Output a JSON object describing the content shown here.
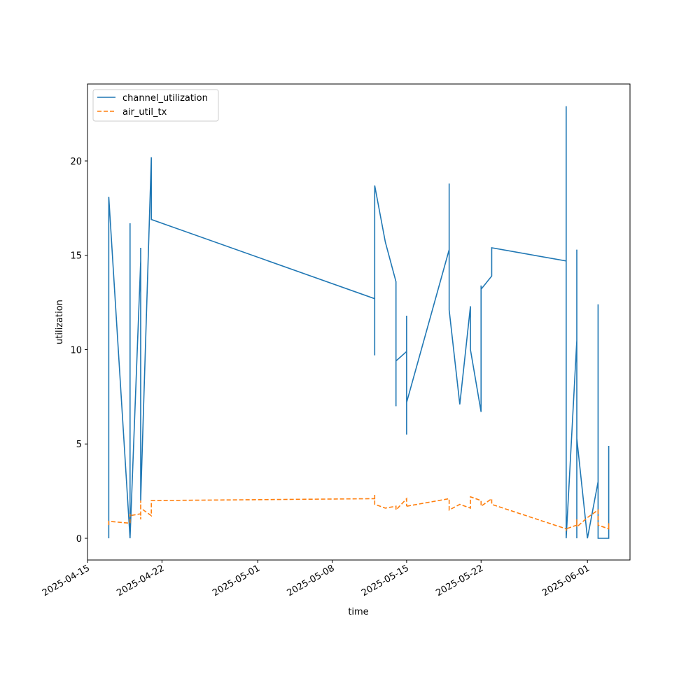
{
  "chart_data": {
    "type": "line",
    "x_label": "time",
    "y_label": "utilization",
    "x": [
      "2025-04-17",
      "2025-04-17",
      "2025-04-19",
      "2025-04-19",
      "2025-04-19",
      "2025-04-20",
      "2025-04-20",
      "2025-04-20",
      "2025-04-20",
      "2025-04-21",
      "2025-04-21",
      "2025-05-12",
      "2025-05-12",
      "2025-05-12",
      "2025-05-13",
      "2025-05-14",
      "2025-05-14",
      "2025-05-14",
      "2025-05-15",
      "2025-05-15",
      "2025-05-15",
      "2025-05-15",
      "2025-05-19",
      "2025-05-19",
      "2025-05-19",
      "2025-05-20",
      "2025-05-21",
      "2025-05-21",
      "2025-05-21",
      "2025-05-22",
      "2025-05-22",
      "2025-05-22",
      "2025-05-22",
      "2025-05-23",
      "2025-05-23",
      "2025-05-30",
      "2025-05-30",
      "2025-05-30",
      "2025-05-31",
      "2025-05-31",
      "2025-05-31",
      "2025-05-31",
      "2025-06-01",
      "2025-06-02",
      "2025-06-02",
      "2025-06-02",
      "2025-06-02",
      "2025-06-03",
      "2025-06-03",
      "2025-06-03"
    ],
    "series": [
      {
        "name": "channel_utilization",
        "color": "#1f77b4",
        "style": "solid",
        "values": [
          0,
          18.1,
          0,
          16.7,
          0,
          14.7,
          9.8,
          15.4,
          2,
          20.2,
          16.9,
          12.7,
          9.7,
          18.7,
          15.7,
          13.6,
          7,
          9.4,
          9.9,
          5.5,
          11.8,
          7.2,
          15.3,
          18.8,
          12.1,
          7.1,
          12.3,
          12.3,
          10,
          6.7,
          12.4,
          13.4,
          13.2,
          13.9,
          15.4,
          14.7,
          22.9,
          0,
          10.5,
          15.3,
          0,
          5.3,
          0,
          3,
          0,
          12.4,
          0,
          0,
          4.9,
          0
        ]
      },
      {
        "name": "air_util_tx",
        "color": "#ff7f0e",
        "style": "dashed",
        "values": [
          0.7,
          0.9,
          0.8,
          1.3,
          1.2,
          1.3,
          1.0,
          2.0,
          1.6,
          1.2,
          2.0,
          2.1,
          2.3,
          1.8,
          1.6,
          1.7,
          1.6,
          1.5,
          2.1,
          1.7,
          1.8,
          1.7,
          2.1,
          1.9,
          1.5,
          1.8,
          1.6,
          2.0,
          2.2,
          2.0,
          2.0,
          1.9,
          1.7,
          2.1,
          1.8,
          0.5,
          0.4,
          0.5,
          0.7,
          1.0,
          0.8,
          0.6,
          1.1,
          1.5,
          1.2,
          0.9,
          0.7,
          0.5,
          0.8,
          0.5
        ]
      }
    ],
    "xlim": [
      "2025-04-15",
      "2025-06-05"
    ],
    "xticks": [
      "2025-04-15",
      "2025-04-22",
      "2025-05-01",
      "2025-05-08",
      "2025-05-15",
      "2025-05-22",
      "2025-06-01"
    ],
    "ylim": [
      -1.15,
      24.08
    ],
    "yticks": [
      0,
      5,
      10,
      15,
      20
    ],
    "legend": "upper left",
    "grid": false
  }
}
